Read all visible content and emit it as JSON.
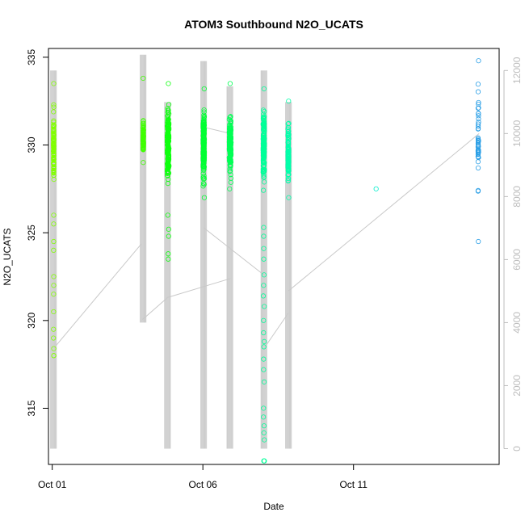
{
  "chart_data": {
    "type": "scatter",
    "title": "ATOM3 Southbound N2O_UCATS",
    "xlabel": "Date",
    "ylabel": "N2O_UCATS",
    "y2label": "",
    "x_axis": {
      "type": "date",
      "range": [
        "2017-09-30T21:00",
        "2017-10-15T20:00"
      ],
      "ticks": [
        {
          "value": "2017-10-01",
          "label": "Oct 01"
        },
        {
          "value": "2017-10-06",
          "label": "Oct 06"
        },
        {
          "value": "2017-10-11",
          "label": "Oct 11"
        }
      ]
    },
    "y_axis": {
      "range": [
        311.8,
        335.5
      ],
      "ticks": [
        315,
        320,
        325,
        330,
        335
      ]
    },
    "y2_axis": {
      "label": "",
      "range": [
        -500,
        12700
      ],
      "ticks": [
        0,
        2000,
        4000,
        6000,
        8000,
        10000,
        12000
      ],
      "color": "#bdbdbd"
    },
    "legend": "none",
    "grid": false,
    "colors": {
      "altitude_line": "#c8c8c8",
      "axis": "#000000",
      "flight_1": "#80ff00",
      "flight_2": "#3fff00",
      "flight_3": "#10ff10",
      "flight_4": "#00ff33",
      "flight_5": "#00ff55",
      "flight_6": "#00ff99",
      "flight_7": "#00ffaa",
      "flight_8": "#00eecc",
      "flight_9": "#2b9fe6"
    },
    "flights": [
      {
        "date": "2017-10-01",
        "hour_start": 1.0,
        "hour_end": 1.3,
        "color": "#80ff00",
        "n2o_min": 318.0,
        "n2o_max": 333.5,
        "n2o_center": 330.0,
        "n_points": 110,
        "tail": [
          318.0,
          318.4,
          319.0,
          319.5,
          320.5,
          321.5,
          322.0,
          322.5,
          324.0,
          324.5,
          325.5,
          326.0
        ]
      },
      {
        "date": "2017-10-04",
        "hour_start": 0.4,
        "hour_end": 0.7,
        "color": "#3fff00",
        "n2o_min": 329.0,
        "n2o_max": 333.8,
        "n2o_center": 330.5,
        "n_points": 90,
        "tail": []
      },
      {
        "date": "2017-10-04",
        "hour_start": 19.6,
        "hour_end": 21.0,
        "color": "#10ff10",
        "n2o_min": 323.5,
        "n2o_max": 333.5,
        "n2o_center": 330.0,
        "n_points": 200,
        "tail": [
          323.8,
          324.8,
          325.2,
          326.0
        ]
      },
      {
        "date": "2017-10-06",
        "hour_start": 0.2,
        "hour_end": 1.2,
        "color": "#00ff33",
        "n2o_min": 327.0,
        "n2o_max": 333.2,
        "n2o_center": 330.0,
        "n_points": 170,
        "tail": []
      },
      {
        "date": "2017-10-06",
        "hour_start": 21.0,
        "hour_end": 22.5,
        "color": "#00ff55",
        "n2o_min": 327.5,
        "n2o_max": 333.5,
        "n2o_center": 330.0,
        "n_points": 170,
        "tail": []
      },
      {
        "date": "2017-10-08",
        "hour_start": 0.0,
        "hour_end": 1.0,
        "color": "#00ff99",
        "n2o_min": 312.0,
        "n2o_max": 333.2,
        "n2o_center": 330.0,
        "n_points": 160,
        "tail": [
          312.0,
          313.2,
          313.6,
          314.0,
          314.5,
          315.0,
          316.5,
          317.2,
          317.8,
          318.5,
          318.8,
          319.3,
          320.0,
          320.8,
          321.4,
          322.0,
          322.6,
          323.5,
          324.1,
          324.8,
          325.3
        ]
      },
      {
        "date": "2017-10-08",
        "hour_start": 19.8,
        "hour_end": 20.4,
        "color": "#00ffaa",
        "n2o_min": 327.0,
        "n2o_max": 332.5,
        "n2o_center": 329.5,
        "n_points": 120,
        "tail": []
      },
      {
        "date": "2017-10-11",
        "hour_start": 18.0,
        "hour_end": 18.0,
        "color": "#00eecc",
        "n2o_min": 327.5,
        "n2o_max": 327.5,
        "n2o_center": 327.5,
        "n_points": 1,
        "tail": []
      },
      {
        "date": "2017-10-15",
        "hour_start": 3.2,
        "hour_end": 3.6,
        "color": "#2b9fe6",
        "n2o_min": 324.5,
        "n2o_max": 334.8,
        "n2o_center": 330.0,
        "n_points": 45,
        "tail": []
      }
    ],
    "altitude_profile": {
      "units": "right axis",
      "segments": [
        {
          "date": "2017-10-01",
          "hour": 1.0,
          "alt_min": 0,
          "alt_max": 12000
        },
        {
          "date": "2017-10-04",
          "hour": 0.4,
          "alt_min": 4000,
          "alt_max": 12500
        },
        {
          "date": "2017-10-04",
          "hour": 19.8,
          "alt_min": 0,
          "alt_max": 11000
        },
        {
          "date": "2017-10-06",
          "hour": 0.6,
          "alt_min": 0,
          "alt_max": 12300
        },
        {
          "date": "2017-10-06",
          "hour": 21.5,
          "alt_min": 0,
          "alt_max": 11500
        },
        {
          "date": "2017-10-08",
          "hour": 0.6,
          "alt_min": 0,
          "alt_max": 12000
        },
        {
          "date": "2017-10-08",
          "hour": 20.2,
          "alt_min": 0,
          "alt_max": 11000
        }
      ],
      "transits": [
        {
          "from": [
            "2017-10-01",
            1.5,
            3200
          ],
          "to": [
            "2017-10-03",
            23.0,
            6500
          ]
        },
        {
          "from": [
            "2017-10-04",
            0.0,
            4100
          ],
          "to": [
            "2017-10-04",
            20.0,
            4800
          ]
        },
        {
          "from": [
            "2017-10-04",
            20.0,
            4800
          ],
          "to": [
            "2017-10-06",
            22.0,
            5400
          ]
        },
        {
          "from": [
            "2017-10-06",
            1.0,
            7000
          ],
          "to": [
            "2017-10-08",
            1.0,
            5500
          ]
        },
        {
          "from": [
            "2017-10-06",
            1.0,
            10200
          ],
          "to": [
            "2017-10-06",
            22.0,
            10000
          ]
        },
        {
          "from": [
            "2017-10-08",
            1.0,
            3200
          ],
          "to": [
            "2017-10-08",
            20.0,
            4300
          ]
        },
        {
          "from": [
            "2017-10-08",
            20.0,
            5000
          ],
          "to": [
            "2017-10-15",
            4.0,
            10000
          ]
        }
      ]
    }
  }
}
